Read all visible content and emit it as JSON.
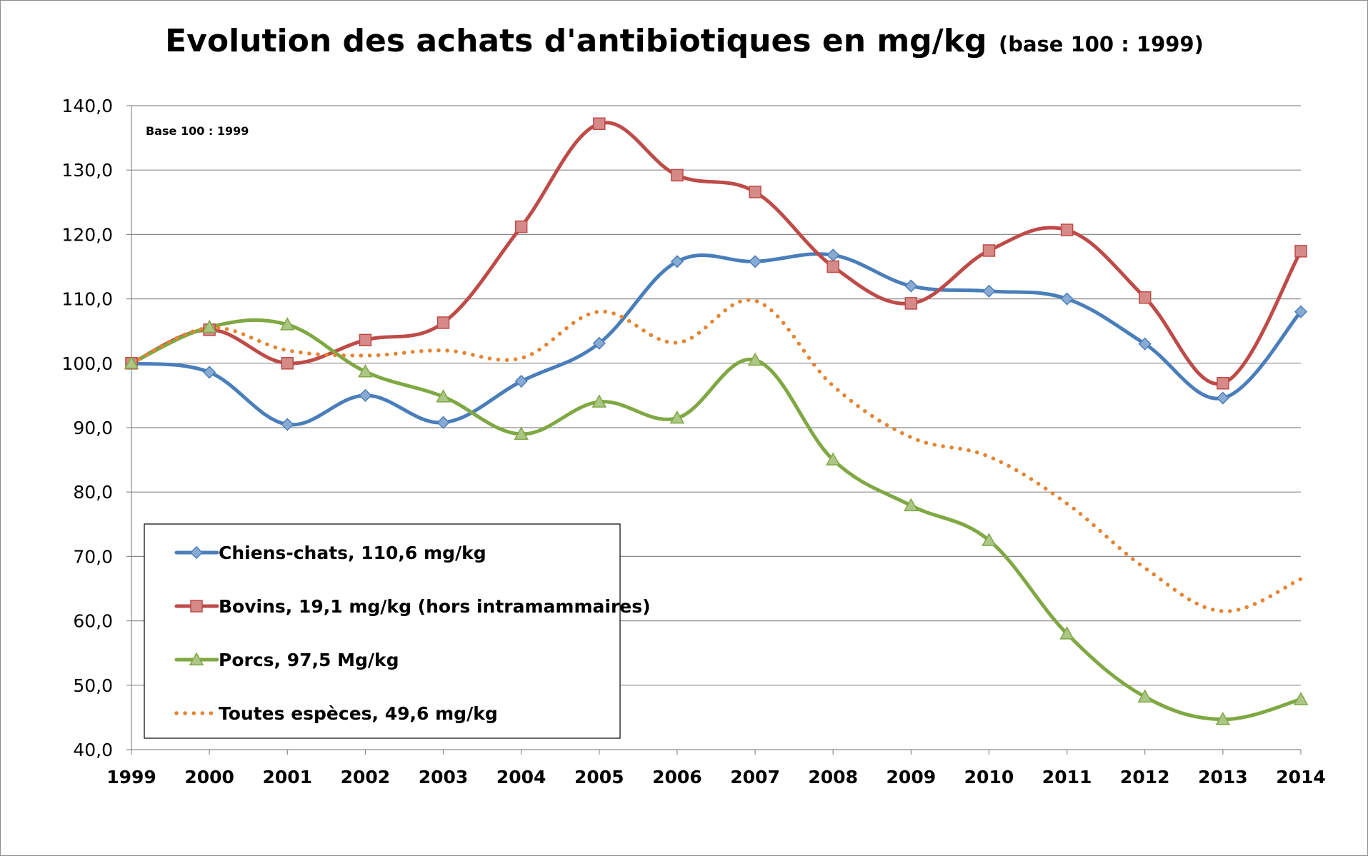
{
  "chart_data": {
    "type": "line",
    "title": "Evolution des achats d'antibiotiques en mg/kg",
    "subtitle": "(base 100 : 1999)",
    "annotation": "Base 100 : 1999",
    "categories": [
      "1999",
      "2000",
      "2001",
      "2002",
      "2003",
      "2004",
      "2005",
      "2006",
      "2007",
      "2008",
      "2009",
      "2010",
      "2011",
      "2012",
      "2013",
      "2014"
    ],
    "ylim": [
      40,
      140
    ],
    "yticks": [
      "40,0",
      "50,0",
      "60,0",
      "70,0",
      "80,0",
      "90,0",
      "100,0",
      "110,0",
      "120,0",
      "130,0",
      "140,0"
    ],
    "grid": true,
    "legend_position": "bottom-left",
    "series": [
      {
        "name": "Chiens-chats, 110,6 mg/kg",
        "color": "#4a7ebb",
        "marker": "diamond",
        "style": "solid",
        "values": [
          100,
          98.6,
          90.5,
          95,
          90.8,
          97.2,
          103.1,
          115.8,
          115.8,
          116.8,
          112,
          111.2,
          110,
          103,
          94.6,
          108
        ]
      },
      {
        "name": "Bovins, 19,1 mg/kg (hors intramammaires)",
        "color": "#be4b48",
        "marker": "square",
        "style": "solid",
        "values": [
          100,
          105.2,
          100,
          103.6,
          106.3,
          121.2,
          137.2,
          129.2,
          126.6,
          115,
          109.3,
          117.5,
          120.7,
          110.2,
          96.9,
          117.4
        ]
      },
      {
        "name": "Porcs, 97,5 Mg/kg",
        "color": "#7fa843",
        "marker": "triangle",
        "style": "solid",
        "values": [
          100,
          105.6,
          106,
          98.7,
          94.8,
          89,
          94,
          91.5,
          100.5,
          85,
          77.9,
          72.5,
          58,
          48.2,
          44.7,
          47.8
        ]
      },
      {
        "name": "Toutes espèces, 49,6 mg/kg",
        "color": "#e48534",
        "marker": "none",
        "style": "dotted",
        "values": [
          100,
          105.5,
          102,
          101.2,
          102,
          100.8,
          108,
          103.2,
          109.7,
          96.5,
          88.5,
          85.5,
          78.2,
          68.2,
          61.5,
          66.5
        ]
      }
    ]
  }
}
